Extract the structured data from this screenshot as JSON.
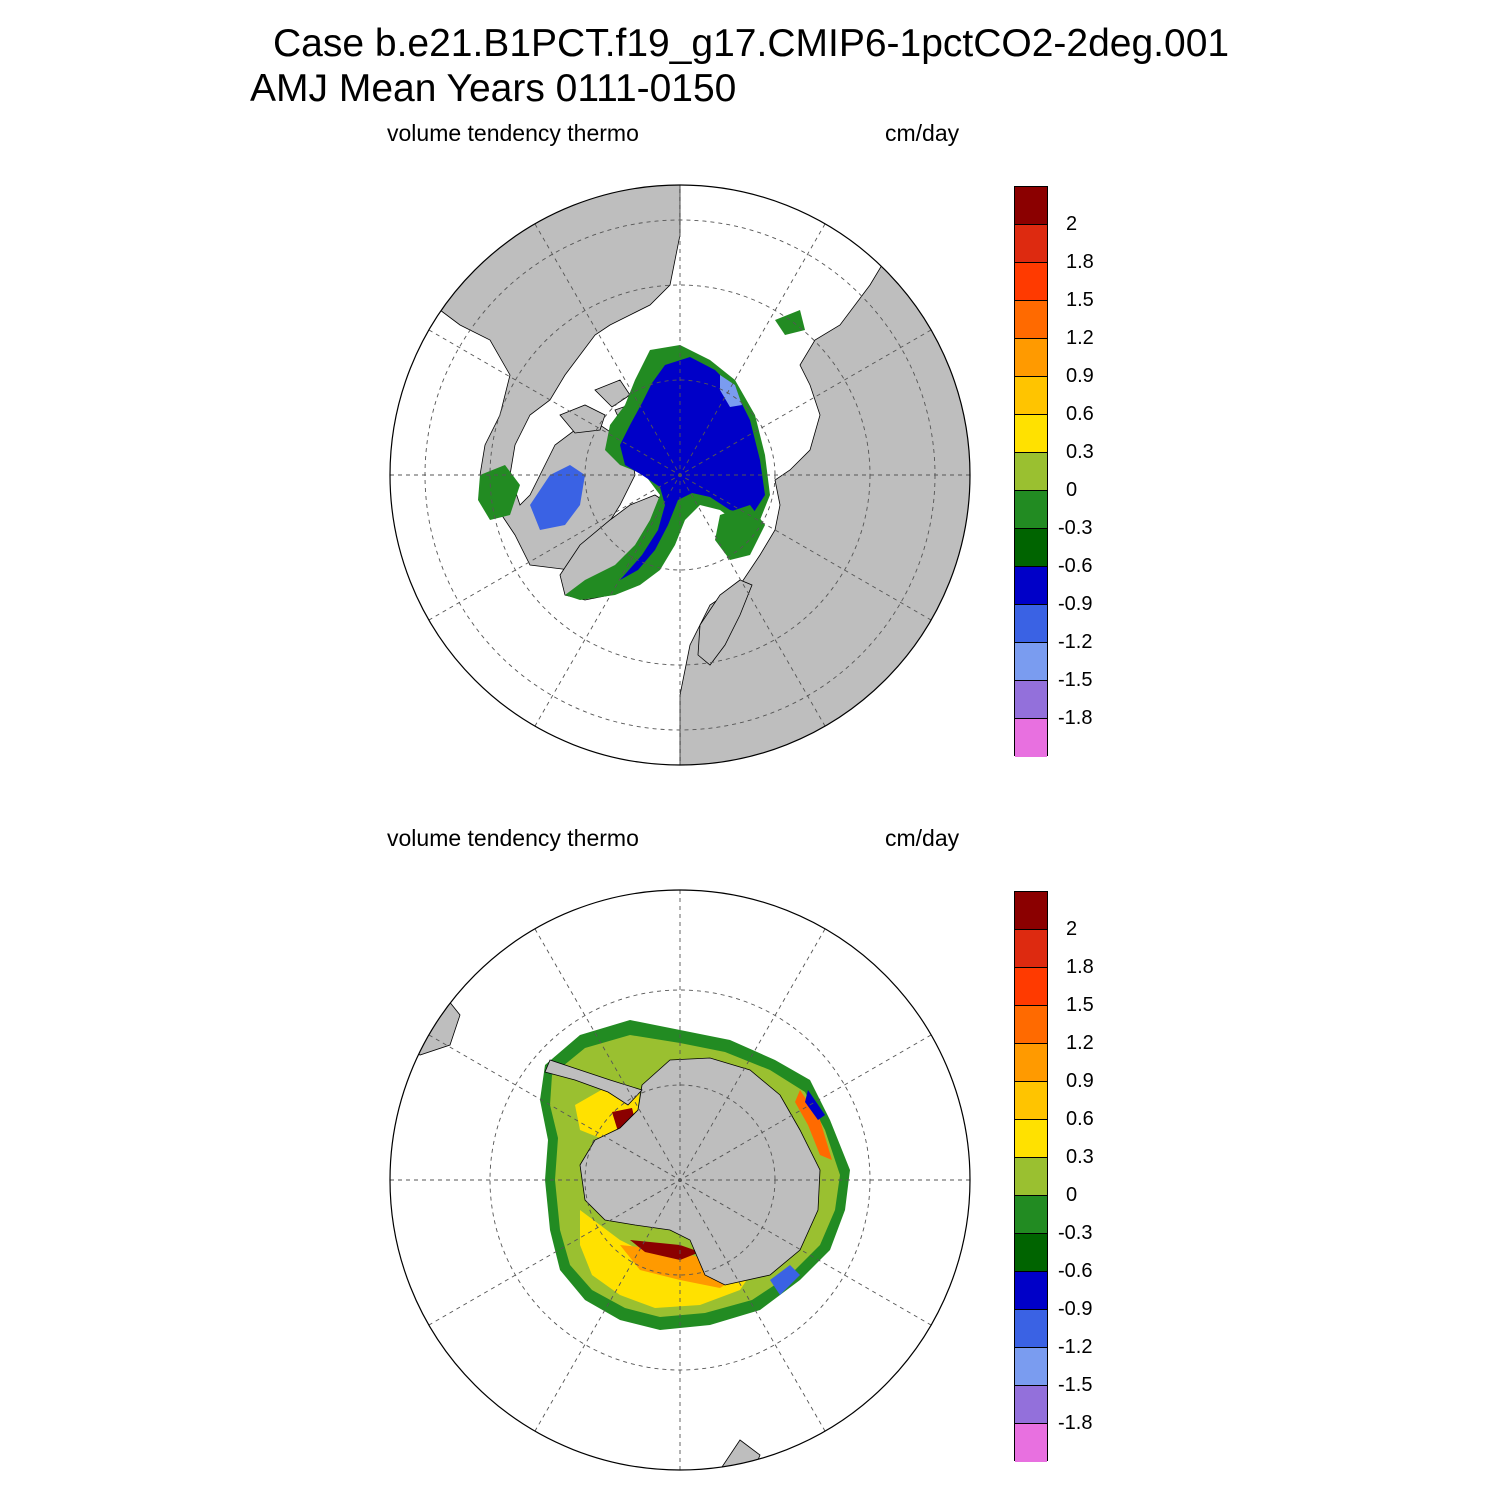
{
  "figure": {
    "title_line1": "Case b.e21.B1PCT.f19_g17.CMIP6-1pctCO2-2deg.001",
    "title_line2": "AMJ Mean   Years 0111-0150"
  },
  "panels": [
    {
      "id": "north",
      "left_label": "volume tendency thermo",
      "right_label": "cm/day",
      "hemisphere": "north-polar-stereographic"
    },
    {
      "id": "south",
      "left_label": "volume tendency thermo",
      "right_label": "cm/day",
      "hemisphere": "south-polar-stereographic"
    }
  ],
  "colorbar": {
    "labels": [
      "2",
      "1.8",
      "1.5",
      "1.2",
      "0.9",
      "0.6",
      "0.3",
      "0",
      "-0.3",
      "-0.6",
      "-0.9",
      "-1.2",
      "-1.5",
      "-1.8"
    ],
    "colors": [
      "#8b0000",
      "#dd2a10",
      "#ff3a00",
      "#ff6a00",
      "#ff9a00",
      "#ffc400",
      "#ffe100",
      "#9ac030",
      "#228b22",
      "#006400",
      "#0000c8",
      "#3a62e4",
      "#7a9cf0",
      "#9370db",
      "#e870e0"
    ]
  },
  "colors": {
    "land": "#bebebe",
    "ocean": "#ffffff",
    "grid": "#555555"
  }
}
